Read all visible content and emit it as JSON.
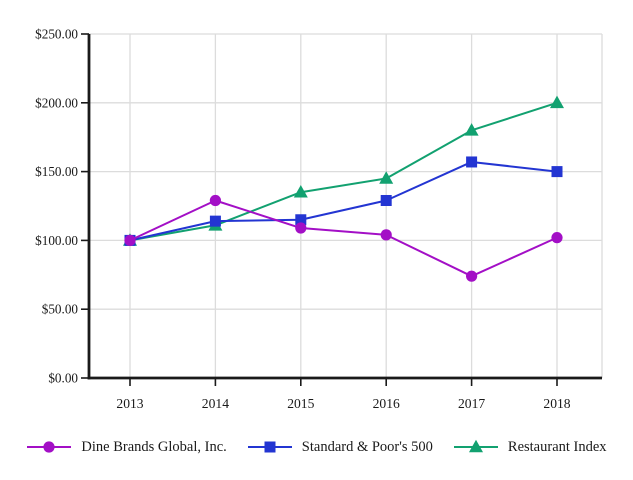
{
  "chart_data": {
    "type": "line",
    "title": "",
    "xlabel": "",
    "ylabel": "",
    "categories": [
      "2013",
      "2014",
      "2015",
      "2016",
      "2017",
      "2018"
    ],
    "series": [
      {
        "name": "Dine Brands Global, Inc.",
        "marker": "circle-marker-icon",
        "shape": "circle",
        "color": "#A30FC6",
        "values": [
          100,
          129,
          109,
          104,
          74,
          102
        ]
      },
      {
        "name": "Standard & Poor's 500",
        "marker": "square-marker-icon",
        "shape": "square",
        "color": "#2335D2",
        "values": [
          100,
          114,
          115,
          129,
          157,
          150
        ]
      },
      {
        "name": "Restaurant Index",
        "marker": "triangle-marker-icon",
        "shape": "triangle",
        "color": "#12A170",
        "values": [
          100,
          111,
          135,
          145,
          180,
          200
        ]
      }
    ],
    "ylim": [
      0,
      250
    ],
    "ytick_step": 50,
    "ytick_labels": [
      "$0.00",
      "$50.00",
      "$100.00",
      "$150.00",
      "$200.00",
      "$250.00"
    ],
    "grid": true,
    "legend_position": "bottom"
  },
  "colors": {
    "background": "#FFFFFF",
    "grid": "#DCDCDC",
    "axis": "#1A1A1A",
    "text": "#1A1A1A"
  }
}
